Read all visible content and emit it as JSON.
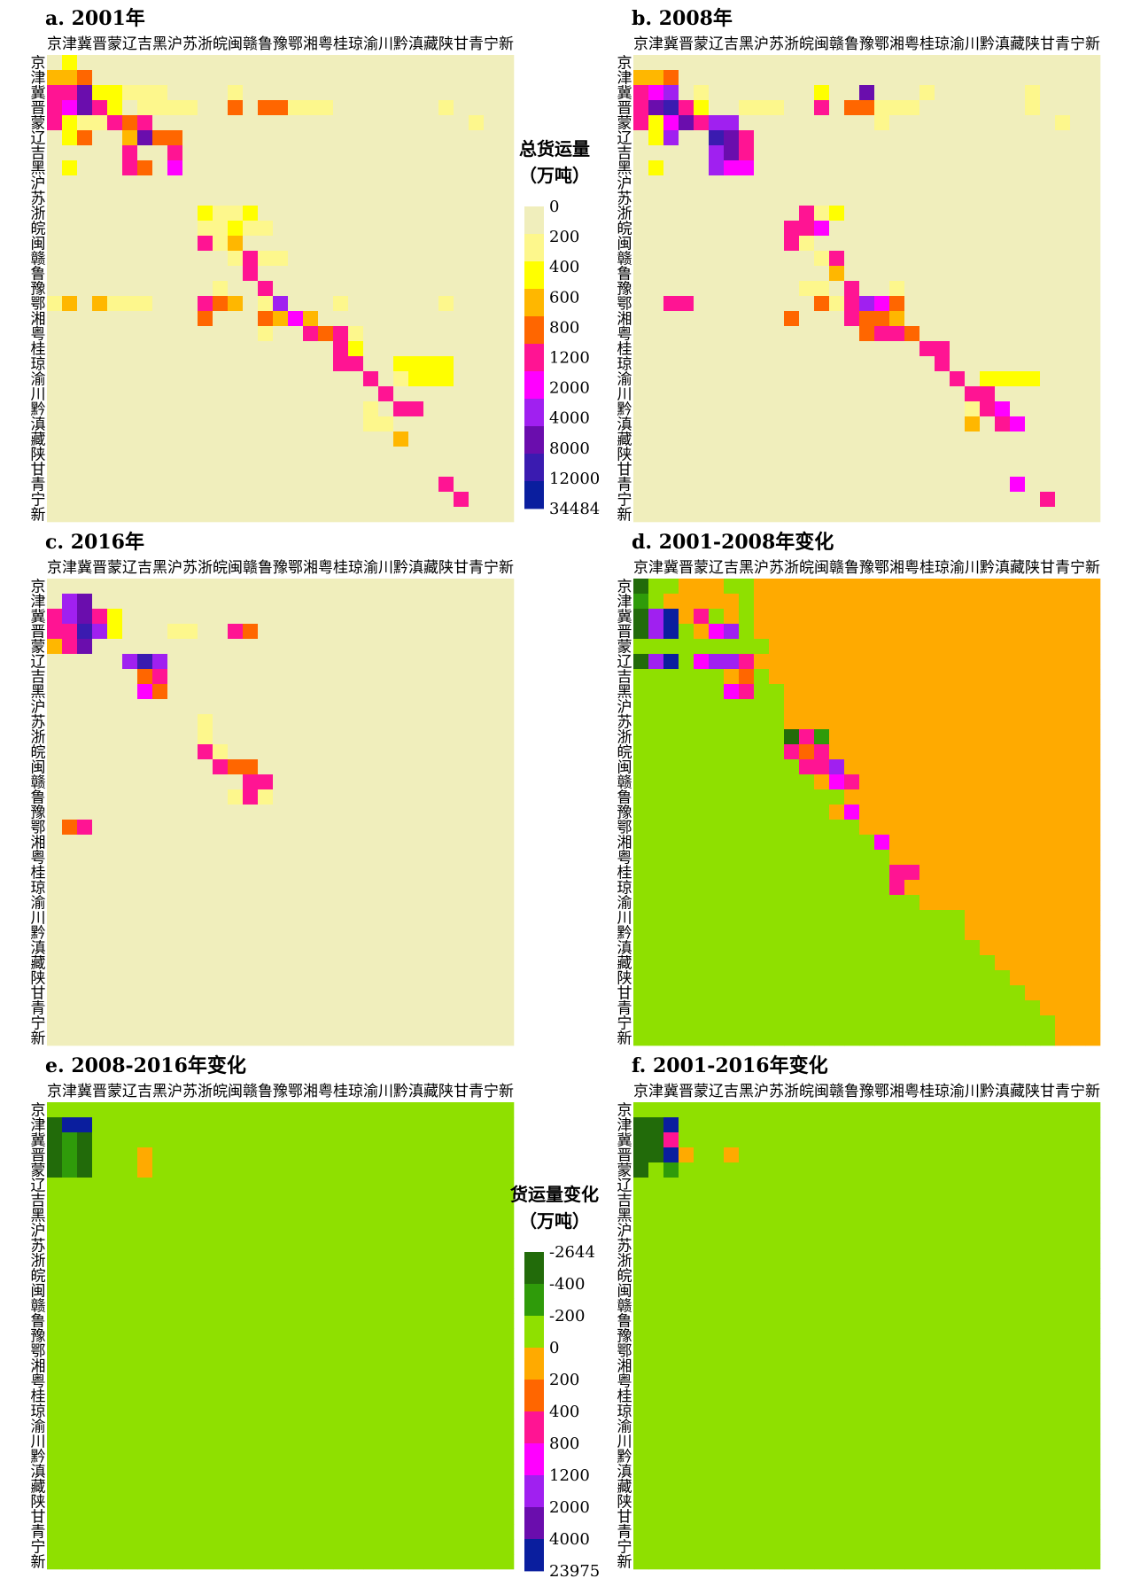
{
  "provinces": [
    "京",
    "津",
    "冀",
    "晋",
    "蒙",
    "辽",
    "吉",
    "黑",
    "沪",
    "苏",
    "浙",
    "皖",
    "闽",
    "赣",
    "鲁",
    "豫",
    "鄂",
    "湘",
    "粤",
    "桂",
    "琼",
    "渝",
    "川",
    "黔",
    "滇",
    "藏",
    "陕",
    "甘",
    "青",
    "宁",
    "新"
  ],
  "colors": {
    "volume": [
      "#f0eebc",
      "#fdf78c",
      "#ffff00",
      "#ffb700",
      "#ff6600",
      "#ff1493",
      "#ff00ff",
      "#a020f0",
      "#6a0dad",
      "#3a1bb0",
      "#0a1e9e"
    ],
    "change": [
      "#226b0a",
      "#2f9b0a",
      "#8fe000",
      "#ffaa00",
      "#ff6600",
      "#ff1493",
      "#ff00ff",
      "#a020f0",
      "#6a0dad",
      "#0a1e9e"
    ]
  },
  "legends": {
    "volume": {
      "title_line1": "总货运量",
      "title_line2": "（万吨）",
      "ticks": [
        "0",
        "200",
        "400",
        "600",
        "800",
        "1200",
        "2000",
        "4000",
        "8000",
        "12000",
        "34484"
      ]
    },
    "change": {
      "title_line1": "货运量变化",
      "title_line2": "（万吨）",
      "ticks": [
        "-2644",
        "-400",
        "-200",
        "0",
        "200",
        "400",
        "800",
        "1200",
        "2000",
        "4000",
        "23975"
      ]
    }
  },
  "chart_data": [
    {
      "type": "heatmap",
      "title": "a. 2001年",
      "legend": "volume",
      "rows": [
        "0200000000000000000000000000000",
        "3340000000000000000000000000000",
        "5582211100001000000000000000000",
        "5685201111004044111000000010000",
        "5211545000000000000000000000100",
        "0240038440000000000000000000000",
        "0000050050000000000000000000000",
        "0200054060000000000000000000000",
        "0000000000000000000000000000000",
        "0000000000000000000000000000000",
        "0000000000211200000000000000000",
        "0000000000112110000000000000000",
        "0000000000513000000000000000000",
        "0000000000001511000000000000000",
        "0000000000000500000000000000000",
        "0000000000010050000000000000000",
        "1303111000543017000100000010000",
        "0000000000400043630000000000000",
        "0000000000000010054510000000000",
        "0000000000000000000520000000000",
        "0000000000000000000550022220000",
        "0000000000000000000005012220000",
        "0000000000000000000000500000000",
        "0000000000000000000001055000000",
        "0000000000000000000001100000000",
        "0000000000000000000000030000000",
        "0000000000000000000000000000000",
        "0000000000000000000000000000000",
        "0000000000000000000000000050000",
        "0000000000000000000000000005000",
        "0000000000000000000000000000000"
      ]
    },
    {
      "type": "heatmap",
      "title": "b. 2008年",
      "legend": "volume",
      "rows": [
        "0000000000000000000000000000000",
        "3340000000000000000000000000000",
        "5670100000002008000100000010000",
        "5895200111005044111000000010000",
        "5268577000000000100000000000100",
        "0270098500000000000000000000000",
        "0000078500000000000000000000000",
        "0200076600000000000000000000000",
        "0000000000000000000000000000000",
        "0000000000000000000000000000000",
        "0000000000051200000000000000000",
        "0000000000556000000000000000000",
        "0000000000510000000000000000000",
        "0000000000001500000000000000000",
        "0000000000000300000000000000000",
        "0000000000011050010000000000000",
        "0055000000004157640000000000000",
        "0000000000400054430000000000000",
        "0000000000000004554000000000000",
        "0000000000000000000550000000000",
        "0000000000000000000050000000000",
        "0000000000000000000005022220000",
        "0000000000000000000000550000000",
        "0000000000000000000000156000000",
        "0000000000000000000000305600000",
        "0000000000000000000000000000000",
        "0000000000000000000000000000000",
        "0000000000000000000000000000000",
        "0000000000000000000000000600000",
        "0000000000000000000000000005000",
        "0000000000000000000000000000000"
      ]
    },
    {
      "type": "heatmap",
      "title": "c. 2016年",
      "legend": "volume",
      "rows": [
        "0000000000000000000000000000000",
        "0780000000000000000000000000000",
        "5785200000000000000000000000000",
        "5597200011005400000000000000000",
        "3580000000000000000000000000000",
        "0000079700000000000000000000000",
        "0000004500000000000000000000000",
        "0000006400000000000000000000000",
        "0000000000000000000000000000000",
        "0000000000100000000000000000000",
        "0000000000100000000000000000000",
        "0000000000510000000000000000000",
        "0000000000054400000000000000000",
        "0000000000000550000000000000000",
        "0000000000001510000000000000000",
        "0000000000000000000000000000000",
        "0450000000000000000000000000000",
        "0000000000000000000000000000000",
        "0000000000000000000000000000000",
        "0000000000000000000000000000000",
        "0000000000000000000000000000000",
        "0000000000000000000000000000000",
        "0000000000000000000000000000000",
        "0000000000000000000000000000000",
        "0000000000000000000000000000000",
        "0000000000000000000000000000000",
        "0000000000000000000000000000000",
        "0000000000000000000000000000000",
        "0000000000000000000000000000000",
        "0000000000000000000000000000000",
        "0000000000000000000000000000000"
      ]
    },
    {
      "type": "heatmap",
      "title": "d. 2001-2008年变化",
      "legend": "change",
      "rows": [
        "0223332233333333333333333333333",
        "1233333233333333333333333333333",
        "0793523233333333333333333333333",
        "0792367233333333333333333333333",
        "2222222223333333333333333333333",
        "0792677533333333333333333333333",
        "2222223423333333333333333333333",
        "2222226522333333333333333333333",
        "2222222222333333333333333333333",
        "2222222222333333333333333333333",
        "2222222222051333333333333333333",
        "2222222222545333333333333333333",
        "2222222222255733333333333333333",
        "2222222222223653333333333333333",
        "2222222222222233333333333333333",
        "2222222222222363333333333333333",
        "2222222222222223333333333333333",
        "2222222222222222633333333333333",
        "2222222222222222233333333333333",
        "2222222222222222255333333333333",
        "2222222222222222253333333333333",
        "2222222222222222222333333333333",
        "2222222222222222222222333333333",
        "2222222222222222222222333333333",
        "2222222222222222222222233333333",
        "2222222222222222222222223333333",
        "2222222222222222222222222333333",
        "2222222222222222222222222233333",
        "2222222222222222222222222223333",
        "2222222222222222222222222222333",
        "2222222222222222222222222222333"
      ]
    },
    {
      "type": "heatmap",
      "title": "e. 2008-2016年变化",
      "legend": "change",
      "rows": [
        "2222222222222222222222222222222",
        "0992222222222222222222222222222",
        "0102222222222222222222222222222",
        "0102223222222222222222222222222",
        "0102223222222222222222222222222",
        "2222222222222222222222222222222",
        "2222222222222222222222222222222",
        "2222222222222222222222222222222",
        "2222222222222222222222222222222",
        "2222222222222222222222222222222",
        "2222222222222222222222222222222",
        "2222222222222222222222222222222",
        "2222222222222222222222222222222",
        "2222222222222222222222222222222",
        "2222222222222222222222222222222",
        "2222222222222222222222222222222",
        "2222222222222222222222222222222",
        "2222222222222222222222222222222",
        "2222222222222222222222222222222",
        "2222222222222222222222222222222",
        "2222222222222222222222222222222",
        "2222222222222222222222222222222",
        "2222222222222222222222222222222",
        "2222222222222222222222222222222",
        "2222222222222222222222222222222",
        "2222222222222222222222222222222",
        "2222222222222222222222222222222",
        "2222222222222222222222222222222",
        "2222222222222222222222222222222",
        "2222222222222222222222222222222",
        "2222222222222222222222222222222"
      ]
    },
    {
      "type": "heatmap",
      "title": "f. 2001-2016年变化",
      "legend": "change",
      "rows": [
        "2222222222222222222222222222222",
        "0092222222222222222222222222222",
        "0052222222222222222222222222222",
        "0093223222222222222222222222222",
        "0212222222222222222222222222222",
        "2222222222222222222222222222222",
        "2222222222222222222222222222222",
        "2222222222222222222222222222222",
        "2222222222222222222222222222222",
        "2222222222222222222222222222222",
        "2222222222222222222222222222222",
        "2222222222222222222222222222222",
        "2222222222222222222222222222222",
        "2222222222222222222222222222222",
        "2222222222222222222222222222222",
        "2222222222222222222222222222222",
        "2222222222222222222222222222222",
        "2222222222222222222222222222222",
        "2222222222222222222222222222222",
        "2222222222222222222222222222222",
        "2222222222222222222222222222222",
        "2222222222222222222222222222222",
        "2222222222222222222222222222222",
        "2222222222222222222222222222222",
        "2222222222222222222222222222222",
        "2222222222222222222222222222222",
        "2222222222222222222222222222222",
        "2222222222222222222222222222222",
        "2222222222222222222222222222222",
        "2222222222222222222222222222222",
        "2222222222222222222222222222222"
      ]
    }
  ]
}
